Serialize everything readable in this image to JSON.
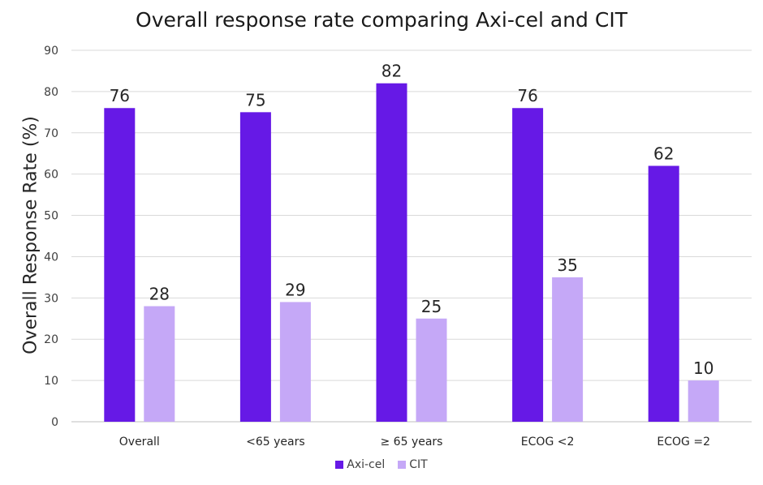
{
  "chart_data": {
    "type": "bar",
    "title": "Overall response rate comparing Axi-cel and CIT",
    "xlabel": "",
    "ylabel": "Overall Response Rate (%)",
    "ylim": [
      0,
      90
    ],
    "yticks": [
      0,
      10,
      20,
      30,
      40,
      50,
      60,
      70,
      80,
      90
    ],
    "grid": true,
    "legend_position": "bottom",
    "categories": [
      "Overall",
      "<65 years",
      "≥ 65 years",
      "ECOG <2",
      "ECOG =2"
    ],
    "series": [
      {
        "name": "Axi-cel",
        "color": "#6619e6",
        "values": [
          76,
          75,
          82,
          76,
          62
        ]
      },
      {
        "name": "CIT",
        "color": "#c5a8f7",
        "values": [
          28,
          29,
          25,
          35,
          10
        ]
      }
    ]
  }
}
